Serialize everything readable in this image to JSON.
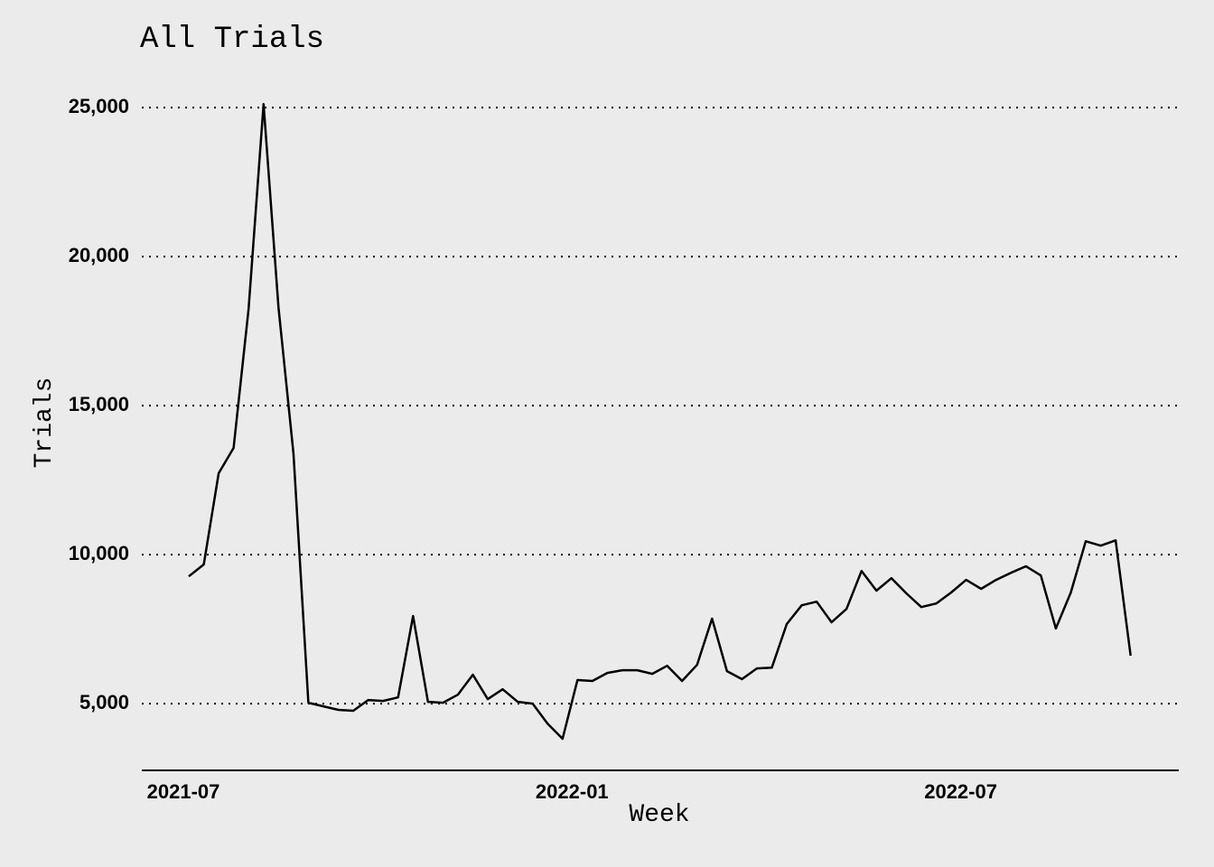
{
  "chart_data": {
    "type": "line",
    "title": "All Trials",
    "x_label": "Week",
    "y_label": "Trials",
    "categories": [
      "2021-07",
      null,
      null,
      null,
      null,
      null,
      null,
      null,
      null,
      null,
      null,
      null,
      null,
      null,
      null,
      null,
      null,
      null,
      null,
      null,
      null,
      null,
      null,
      null,
      null,
      null,
      "2022-01",
      null,
      null,
      null,
      null,
      null,
      null,
      null,
      null,
      null,
      null,
      null,
      null,
      null,
      null,
      null,
      null,
      null,
      null,
      null,
      null,
      null,
      null,
      null,
      null,
      null,
      "2022-07",
      null,
      null,
      null,
      null,
      null,
      null,
      null,
      null,
      null,
      null,
      null
    ],
    "values": [
      9270,
      9670,
      12730,
      13580,
      18240,
      25120,
      18300,
      13390,
      5030,
      4910,
      4790,
      4760,
      5120,
      5090,
      5210,
      7940,
      5060,
      5030,
      5300,
      5970,
      5150,
      5480,
      5060,
      5000,
      4330,
      3820,
      5790,
      5760,
      6030,
      6120,
      6120,
      6000,
      6270,
      5760,
      6300,
      7850,
      6090,
      5820,
      6180,
      6210,
      7670,
      8300,
      8420,
      7730,
      8180,
      9450,
      8790,
      9210,
      8700,
      8240,
      8360,
      8730,
      9150,
      8850,
      9150,
      9390,
      9610,
      9300,
      7520,
      8730,
      10450,
      10300,
      10480,
      6610
    ],
    "color": "#000000",
    "ylim": [
      2760,
      25580
    ],
    "yticks": [
      {
        "value": 5000,
        "label": "5,000"
      },
      {
        "value": 10000,
        "label": "10,000"
      },
      {
        "value": 15000,
        "label": "15,000"
      },
      {
        "value": 20000,
        "label": "20,000"
      },
      {
        "value": 25000,
        "label": "25,000"
      }
    ],
    "grid": true
  }
}
